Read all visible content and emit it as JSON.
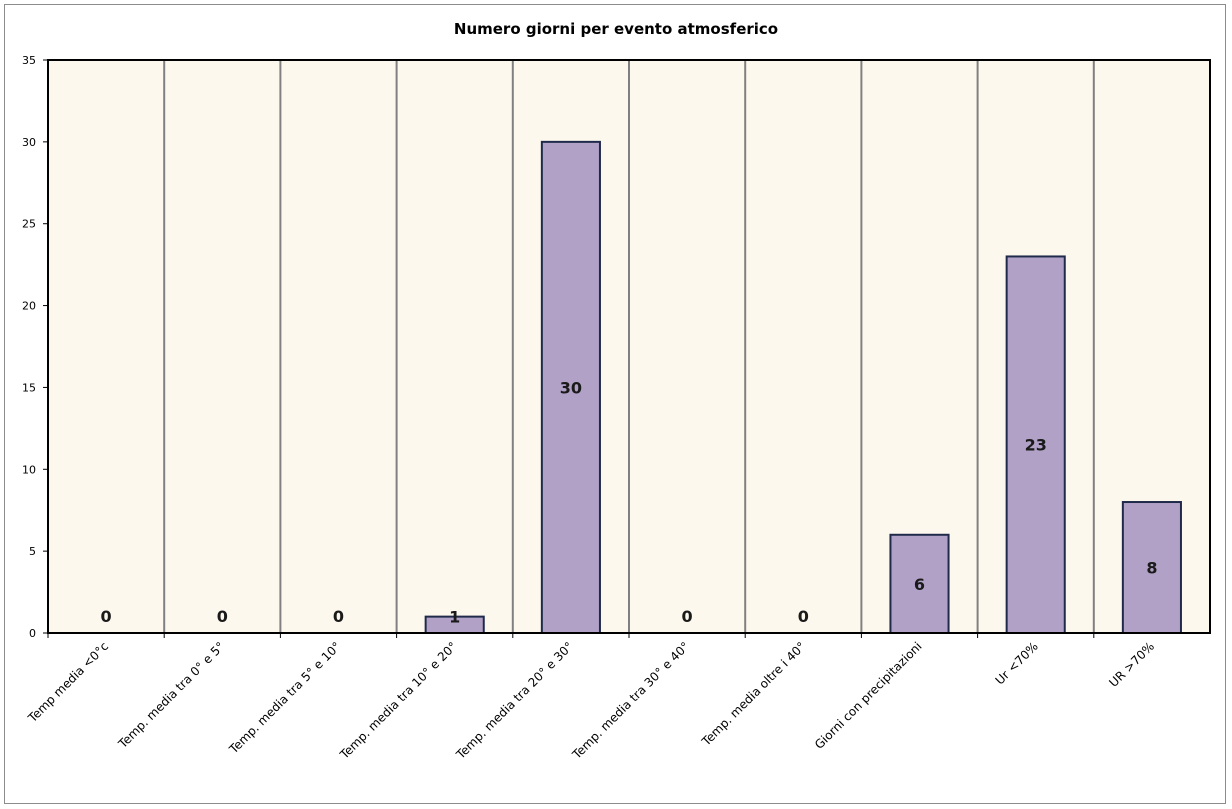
{
  "chart_data": {
    "type": "bar",
    "title": "Numero giorni  per evento atmosferico",
    "xlabel": "",
    "ylabel": "",
    "ylim": [
      0,
      35
    ],
    "yticks": [
      0,
      5,
      10,
      15,
      20,
      25,
      30,
      35
    ],
    "categories": [
      "Temp media <0°c",
      "Temp. media tra 0° e 5°",
      "Temp. media tra 5° e 10°",
      "Temp. media tra 10° e 20°",
      "Temp. media tra 20° e 30°",
      "Temp. media tra 30° e 40°",
      "Temp. media oltre i 40°",
      "Giorni con precipitazioni",
      "Ur  <70%",
      "UR >70%"
    ],
    "values": [
      0,
      0,
      0,
      1,
      30,
      0,
      0,
      6,
      23,
      8
    ],
    "grid": true,
    "legend": "none",
    "colors": {
      "plot_background": "#fdf8ee",
      "bar_fill": "#b2a1c7",
      "bar_stroke": "#1f2a4a",
      "gridline": "#808080",
      "axis": "#000000"
    }
  }
}
